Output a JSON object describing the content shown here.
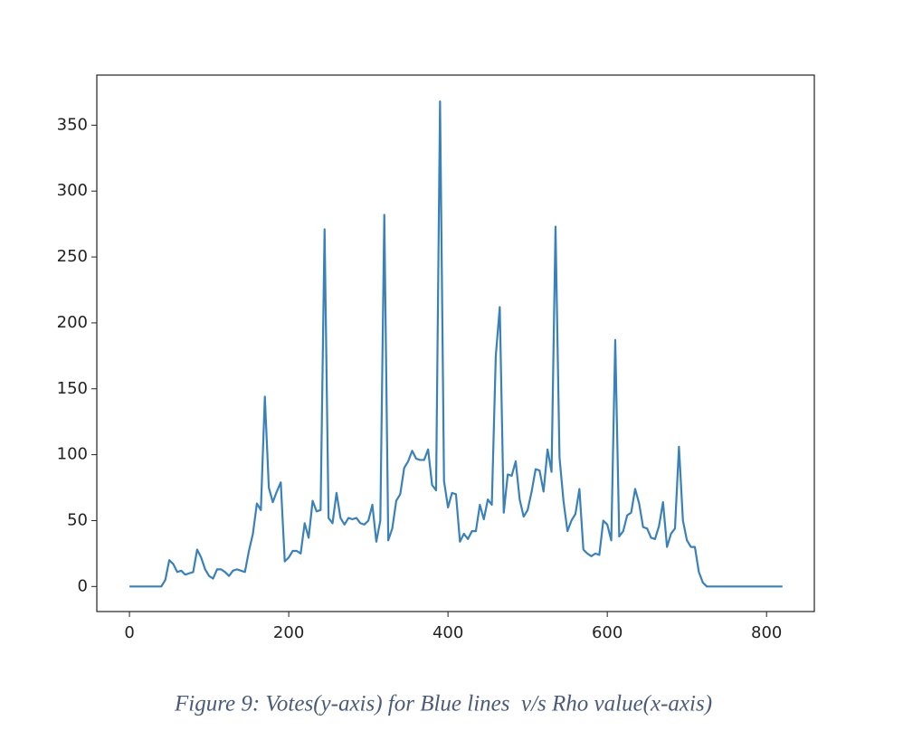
{
  "chart_data": {
    "type": "line",
    "caption": "Figure 9: Votes(y-axis) for Blue lines  v/s Rho value(x-axis)",
    "x": [
      0,
      40,
      45,
      50,
      55,
      60,
      65,
      70,
      75,
      80,
      85,
      90,
      95,
      100,
      105,
      110,
      115,
      120,
      125,
      130,
      135,
      140,
      145,
      150,
      155,
      160,
      165,
      170,
      175,
      180,
      185,
      190,
      195,
      200,
      205,
      210,
      215,
      220,
      225,
      230,
      235,
      240,
      245,
      250,
      255,
      260,
      265,
      270,
      275,
      280,
      285,
      290,
      295,
      300,
      305,
      310,
      315,
      320,
      325,
      330,
      335,
      340,
      345,
      350,
      355,
      360,
      365,
      370,
      375,
      380,
      385,
      390,
      395,
      400,
      405,
      410,
      415,
      420,
      425,
      430,
      435,
      440,
      445,
      450,
      455,
      460,
      465,
      470,
      475,
      480,
      485,
      490,
      495,
      500,
      505,
      510,
      515,
      520,
      525,
      530,
      535,
      540,
      545,
      550,
      555,
      560,
      565,
      570,
      575,
      580,
      585,
      590,
      595,
      600,
      605,
      610,
      615,
      620,
      625,
      630,
      635,
      640,
      645,
      650,
      655,
      660,
      665,
      670,
      675,
      680,
      685,
      690,
      695,
      700,
      705,
      710,
      715,
      720,
      725,
      820
    ],
    "values": [
      0,
      0,
      5,
      20,
      17,
      11,
      12,
      9,
      10,
      11,
      28,
      22,
      13,
      8,
      6,
      13,
      13,
      11,
      8,
      12,
      13,
      12,
      11,
      27,
      40,
      63,
      58,
      144,
      75,
      64,
      72,
      79,
      19,
      22,
      27,
      27,
      25,
      48,
      37,
      65,
      57,
      58,
      271,
      52,
      48,
      71,
      52,
      47,
      52,
      51,
      52,
      48,
      47,
      50,
      62,
      34,
      50,
      282,
      35,
      44,
      65,
      70,
      90,
      95,
      103,
      97,
      96,
      96,
      104,
      77,
      73,
      368,
      80,
      60,
      71,
      70,
      34,
      40,
      36,
      42,
      42,
      62,
      51,
      66,
      62,
      175,
      212,
      56,
      85,
      84,
      95,
      66,
      53,
      58,
      72,
      89,
      88,
      72,
      104,
      87,
      273,
      98,
      65,
      42,
      50,
      55,
      74,
      28,
      25,
      23,
      25,
      24,
      50,
      47,
      35,
      187,
      38,
      42,
      54,
      56,
      74,
      63,
      45,
      44,
      37,
      36,
      46,
      64,
      30,
      40,
      44,
      106,
      50,
      35,
      30,
      30,
      11,
      3,
      0,
      0
    ],
    "color": "#3a80b9",
    "xlim": [
      -41,
      860
    ],
    "ylim": [
      -19,
      388
    ],
    "xticks": [
      0,
      200,
      400,
      600,
      800
    ],
    "yticks": [
      0,
      50,
      100,
      150,
      200,
      250,
      300,
      350
    ]
  }
}
